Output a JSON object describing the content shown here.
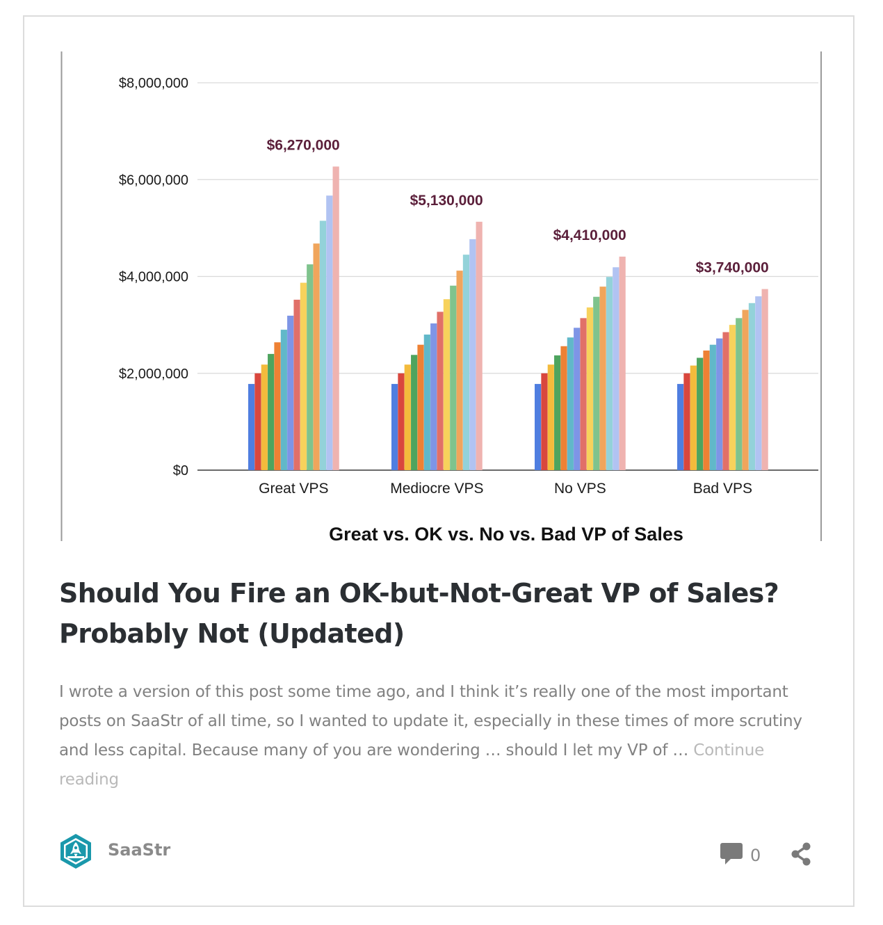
{
  "post": {
    "title": "Should You Fire an OK-but-Not-Great VP of Sales? Probably Not (Updated)",
    "excerpt": "I wrote a version of this post some time ago, and I think it’s really one of the most important posts on SaaStr of all time, so I wanted to update it, especially in these times of more scrutiny and less capital.  Because many of you are wondering … should I let my VP of … ",
    "continue_label": "Continue reading",
    "author": "SaaStr",
    "comment_count": "0",
    "icons": {
      "avatar": "saastr-logo-icon",
      "comments": "comment-bubble-icon",
      "share": "share-icon"
    }
  },
  "chart_data": {
    "type": "bar",
    "xlabel": "Great vs. OK vs. No vs. Bad VP of Sales",
    "ylabel": "",
    "ylim": [
      0,
      8000000
    ],
    "yticks": [
      0,
      2000000,
      4000000,
      6000000,
      8000000
    ],
    "ytick_labels": [
      "$0",
      "$2,000,000",
      "$4,000,000",
      "$6,000,000",
      "$8,000,000"
    ],
    "grid": true,
    "legend": "none",
    "categories": [
      "Great VPS",
      "Mediocre VPS",
      "No VPS",
      "Bad VPS"
    ],
    "bar_colors": [
      "#4f7ee0",
      "#d9473d",
      "#f3bb3c",
      "#4ea45e",
      "#ee8134",
      "#61b8c9",
      "#7e95e6",
      "#e17068",
      "#f7d25c",
      "#7fc38d",
      "#f0a55c",
      "#93d2d9",
      "#b1c3f2",
      "#efb3b0"
    ],
    "groups": [
      {
        "category": "Great VPS",
        "values": [
          1780000,
          2000000,
          2180000,
          2400000,
          2640000,
          2900000,
          3190000,
          3520000,
          3870000,
          4250000,
          4680000,
          5150000,
          5670000,
          6270000
        ],
        "peak_label": "$6,270,000"
      },
      {
        "category": "Mediocre VPS",
        "values": [
          1780000,
          2000000,
          2180000,
          2380000,
          2590000,
          2800000,
          3030000,
          3270000,
          3530000,
          3810000,
          4120000,
          4450000,
          4770000,
          5130000
        ],
        "peak_label": "$5,130,000"
      },
      {
        "category": "No VPS",
        "values": [
          1780000,
          2000000,
          2180000,
          2370000,
          2560000,
          2740000,
          2940000,
          3140000,
          3360000,
          3580000,
          3790000,
          3990000,
          4190000,
          4410000
        ],
        "peak_label": "$4,410,000"
      },
      {
        "category": "Bad VPS",
        "values": [
          1780000,
          2000000,
          2160000,
          2320000,
          2470000,
          2590000,
          2720000,
          2850000,
          3000000,
          3140000,
          3310000,
          3450000,
          3590000,
          3740000
        ],
        "peak_label": "$3,740,000"
      }
    ],
    "label_color": "#5b1f3a"
  }
}
